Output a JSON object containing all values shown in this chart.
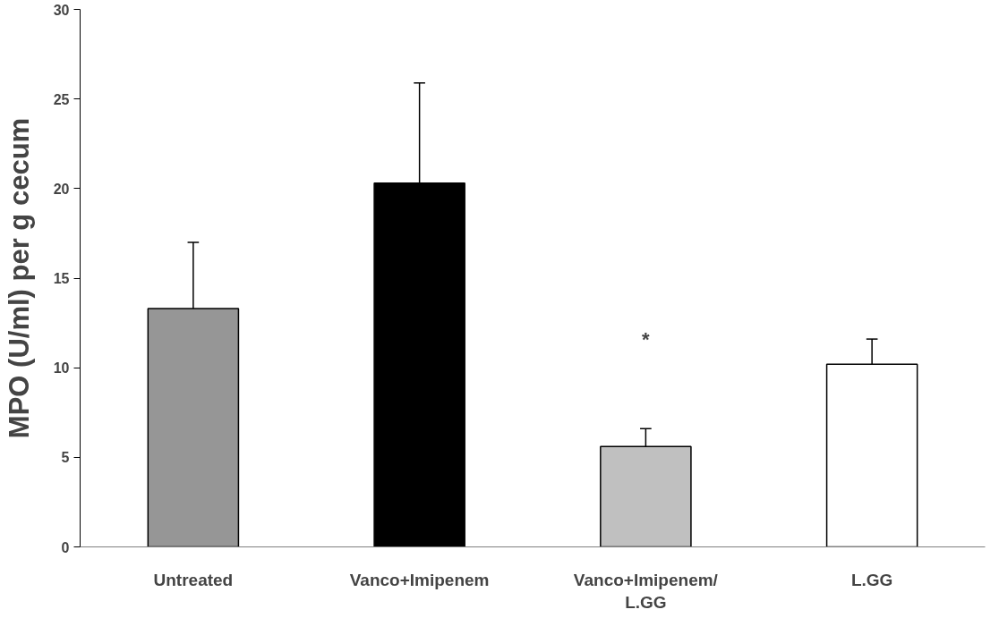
{
  "chart_data": {
    "type": "bar",
    "ylabel": "MPO (U/ml) per g cecum",
    "categories": [
      "Untreated",
      "Vanco+Imipenem",
      "Vanco+Imipenem/ L.GG",
      "L.GG"
    ],
    "values": [
      13.3,
      20.3,
      5.6,
      10.2
    ],
    "colors": [
      "#969696",
      "#000000",
      "#c0c0c0",
      "#ffffff"
    ],
    "errors": [
      [
        13.3,
        17.0
      ],
      [
        20.3,
        25.9
      ],
      [
        5.6,
        6.6
      ],
      [
        10.2,
        11.6
      ]
    ],
    "ylim": [
      0,
      30
    ],
    "yticks": [
      0,
      5,
      10,
      15,
      20,
      25,
      30
    ],
    "grid": false,
    "annotations": [
      "*"
    ]
  }
}
